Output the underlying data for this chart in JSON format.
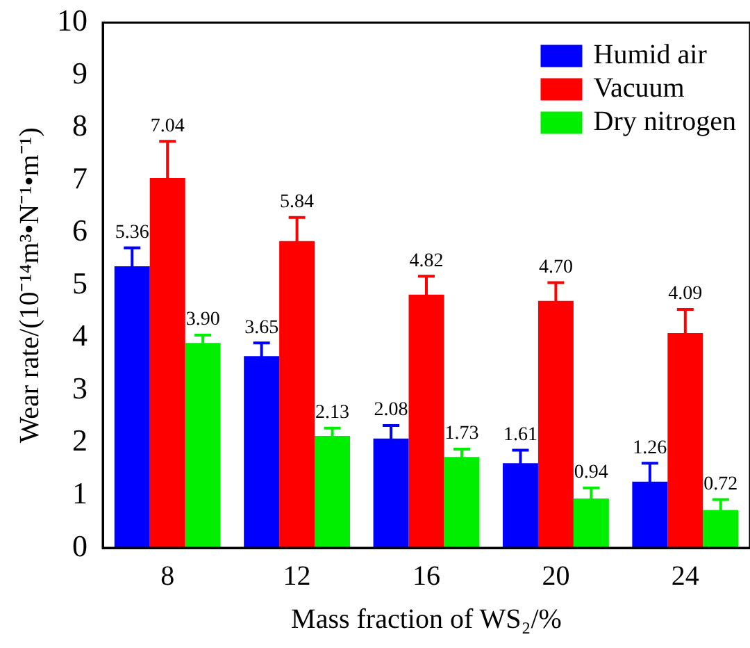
{
  "chart_data": {
    "type": "bar",
    "xlabel": "Mass fraction of WS₂/%",
    "ylabel": "Wear rate/(10⁻¹⁴m³•N⁻¹•m⁻¹)",
    "categories": [
      "8",
      "12",
      "16",
      "20",
      "24"
    ],
    "series": [
      {
        "name": "Humid air",
        "color": "#0000ff",
        "values": [
          5.36,
          3.65,
          2.08,
          1.61,
          1.26
        ],
        "errors": [
          0.35,
          0.25,
          0.25,
          0.25,
          0.35
        ],
        "value_labels": [
          "5.36",
          "3.65",
          "2.08",
          "1.61",
          "1.26"
        ]
      },
      {
        "name": "Vacuum",
        "color": "#ff0000",
        "values": [
          7.04,
          5.84,
          4.82,
          4.7,
          4.09
        ],
        "errors": [
          0.7,
          0.45,
          0.35,
          0.35,
          0.45
        ],
        "value_labels": [
          "7.04",
          "5.84",
          "4.82",
          "4.70",
          "4.09"
        ]
      },
      {
        "name": "Dry nitrogen",
        "color": "#00ee00",
        "values": [
          3.9,
          2.13,
          1.73,
          0.94,
          0.72
        ],
        "errors": [
          0.15,
          0.15,
          0.15,
          0.2,
          0.2
        ],
        "value_labels": [
          "3.90",
          "2.13",
          "1.73",
          "0.94",
          "0.72"
        ]
      }
    ],
    "ylim": [
      0,
      10
    ],
    "yticks": [
      0,
      1,
      2,
      3,
      4,
      5,
      6,
      7,
      8,
      9,
      10
    ],
    "grid": false,
    "legend": "top right"
  }
}
